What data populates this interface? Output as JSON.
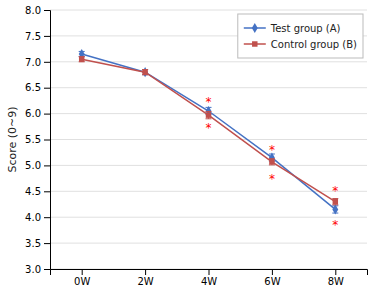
{
  "chart_data": {
    "type": "line",
    "y_label": "Score (0~9)",
    "categories": [
      "0W",
      "2W",
      "4W",
      "6W",
      "8W"
    ],
    "series": [
      {
        "name": "Test group (A)",
        "color": "#4472C4",
        "marker": "diamond",
        "values": [
          7.15,
          6.8,
          6.05,
          5.15,
          4.15
        ],
        "errors": [
          0.05,
          0.05,
          0.07,
          0.07,
          0.07
        ]
      },
      {
        "name": "Control group (B)",
        "color": "#C0504D",
        "marker": "square",
        "values": [
          7.05,
          6.8,
          5.97,
          5.07,
          4.3
        ],
        "errors": [
          0.05,
          0.05,
          0.07,
          0.06,
          0.06
        ]
      }
    ],
    "annotations": [
      {
        "text": "*",
        "x": "4W",
        "y": 6.22,
        "color": "#FF0000"
      },
      {
        "text": "*",
        "x": "6W",
        "y": 5.3,
        "color": "#FF0000"
      },
      {
        "text": "*",
        "x": "8W",
        "y": 4.5,
        "color": "#FF0000"
      },
      {
        "text": "*",
        "x": "4W",
        "y": 5.73,
        "color": "#FF0000"
      },
      {
        "text": "*",
        "x": "6W",
        "y": 4.74,
        "color": "#FF0000"
      },
      {
        "text": "*",
        "x": "8W",
        "y": 3.85,
        "color": "#FF0000"
      }
    ],
    "ylim": [
      3.0,
      8.0
    ],
    "yticks": [
      {
        "value": 3.0,
        "label": "3.0"
      },
      {
        "value": 3.5,
        "label": "3.5"
      },
      {
        "value": 4.0,
        "label": "4.0"
      },
      {
        "value": 4.5,
        "label": "4.5"
      },
      {
        "value": 5.0,
        "label": "5.0"
      },
      {
        "value": 5.5,
        "label": "5.5"
      },
      {
        "value": 6.0,
        "label": "6.0"
      },
      {
        "value": 6.5,
        "label": "6.5"
      },
      {
        "value": 7.0,
        "label": "7.0"
      },
      {
        "value": 7.5,
        "label": "7.5"
      },
      {
        "value": 8.0,
        "label": "8.0"
      }
    ],
    "grid": true,
    "legend": "upper right"
  }
}
